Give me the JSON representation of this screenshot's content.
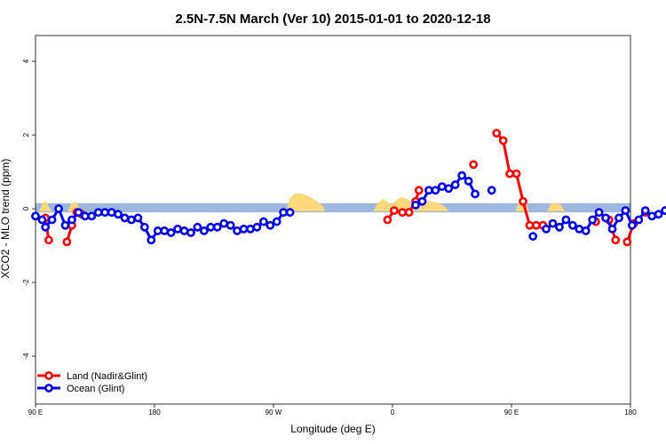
{
  "chart_data": {
    "type": "line",
    "title": "2.5N-7.5N March (Ver 10)   2015-01-01 to 2020-12-18",
    "xlabel": "Longitude (deg E)",
    "ylabel": "XCO2 - MLO trend (ppm)",
    "xlim": [
      90,
      450
    ],
    "ylim": [
      -5.3,
      4.7
    ],
    "x_ticks": [
      {
        "value": 90,
        "label": "90 E"
      },
      {
        "value": 180,
        "label": "180"
      },
      {
        "value": 270,
        "label": "90 W"
      },
      {
        "value": 360,
        "label": "0"
      },
      {
        "value": 450,
        "label": "90 E"
      },
      {
        "value": 540,
        "label": "180"
      }
    ],
    "y_ticks": [
      {
        "value": -4,
        "label": "-4"
      },
      {
        "value": -2,
        "label": "-2"
      },
      {
        "value": 0,
        "label": "0"
      },
      {
        "value": 2,
        "label": "2"
      },
      {
        "value": 4,
        "label": "4"
      }
    ],
    "background": {
      "ocean_band_color": "#9db7de",
      "land_color": "#fdd87c",
      "band_ymin": -0.1,
      "band_ymax": 0.15
    },
    "legend": {
      "placement": "bottom-left",
      "entries": [
        {
          "label": "Land (Nadir&Glint)",
          "color": "#ff0000"
        },
        {
          "label": "Ocean (Glint)",
          "color": "#0000ee"
        }
      ]
    },
    "series": [
      {
        "name": "Land (Nadir&Glint)",
        "color": "#ff0000",
        "segments": [
          [
            [
              96,
              -0.25
            ],
            [
              98,
              -0.85
            ]
          ],
          [
            [
              109,
              -0.9
            ],
            [
              112,
              -0.45
            ]
          ],
          [
            [
              115,
              -0.1
            ],
            [
              118,
              -0.15
            ]
          ],
          [
            [
              303,
              -0.3
            ],
            [
              307,
              -0.05
            ],
            [
              312,
              -0.1
            ],
            [
              316,
              -0.1
            ],
            [
              320,
              0.2
            ],
            [
              322,
              0.5
            ]
          ],
          [
            [
              355,
              1.2
            ]
          ],
          [
            [
              369,
              2.05
            ],
            [
              373,
              1.85
            ],
            [
              377,
              0.95
            ],
            [
              381,
              0.95
            ],
            [
              385,
              0.2
            ],
            [
              389,
              -0.45
            ],
            [
              393,
              -0.45
            ],
            [
              397,
              -0.45
            ]
          ],
          [
            [
              429,
              -0.35
            ]
          ],
          [
            [
              437,
              -0.3
            ],
            [
              441,
              -0.85
            ]
          ],
          [
            [
              448,
              -0.9
            ],
            [
              452,
              -0.4
            ]
          ],
          [
            [
              459,
              -0.1
            ]
          ]
        ]
      },
      {
        "name": "Ocean (Glint)",
        "color": "#0000ee",
        "segments": [
          [
            [
              90,
              -0.2
            ],
            [
              94,
              -0.3
            ],
            [
              96,
              -0.5
            ],
            [
              100,
              -0.3
            ],
            [
              104,
              0.0
            ],
            [
              108,
              -0.45
            ],
            [
              112,
              -0.3
            ],
            [
              116,
              -0.1
            ],
            [
              120,
              -0.2
            ],
            [
              124,
              -0.2
            ],
            [
              128,
              -0.1
            ],
            [
              132,
              -0.1
            ],
            [
              136,
              -0.1
            ],
            [
              140,
              -0.15
            ],
            [
              144,
              -0.25
            ],
            [
              148,
              -0.3
            ],
            [
              152,
              -0.25
            ],
            [
              156,
              -0.5
            ],
            [
              160,
              -0.85
            ],
            [
              164,
              -0.6
            ],
            [
              168,
              -0.6
            ],
            [
              172,
              -0.65
            ],
            [
              176,
              -0.55
            ],
            [
              180,
              -0.6
            ],
            [
              184,
              -0.65
            ],
            [
              188,
              -0.5
            ],
            [
              192,
              -0.6
            ],
            [
              196,
              -0.5
            ],
            [
              200,
              -0.5
            ],
            [
              204,
              -0.4
            ],
            [
              208,
              -0.45
            ],
            [
              212,
              -0.6
            ],
            [
              216,
              -0.55
            ],
            [
              220,
              -0.55
            ],
            [
              224,
              -0.5
            ],
            [
              228,
              -0.35
            ],
            [
              232,
              -0.45
            ],
            [
              236,
              -0.35
            ],
            [
              240,
              -0.1
            ],
            [
              244,
              -0.1
            ]
          ],
          [
            [
              320,
              0.1
            ],
            [
              324,
              0.2
            ],
            [
              328,
              0.5
            ],
            [
              332,
              0.5
            ],
            [
              336,
              0.6
            ],
            [
              340,
              0.55
            ],
            [
              344,
              0.65
            ],
            [
              348,
              0.9
            ],
            [
              352,
              0.75
            ],
            [
              356,
              0.4
            ]
          ],
          [
            [
              366,
              0.5
            ]
          ],
          [
            [
              391,
              -0.75
            ]
          ],
          [
            [
              399,
              -0.55
            ],
            [
              403,
              -0.4
            ],
            [
              407,
              -0.5
            ],
            [
              411,
              -0.3
            ],
            [
              415,
              -0.45
            ],
            [
              419,
              -0.55
            ],
            [
              423,
              -0.6
            ],
            [
              427,
              -0.3
            ],
            [
              431,
              -0.1
            ],
            [
              435,
              -0.25
            ],
            [
              439,
              -0.55
            ],
            [
              443,
              -0.25
            ],
            [
              447,
              -0.05
            ],
            [
              451,
              -0.45
            ],
            [
              455,
              -0.3
            ],
            [
              459,
              -0.05
            ],
            [
              463,
              -0.2
            ],
            [
              467,
              -0.15
            ],
            [
              471,
              -0.05
            ],
            [
              475,
              -0.1
            ],
            [
              479,
              -0.15
            ],
            [
              483,
              -0.25
            ],
            [
              487,
              -0.3
            ],
            [
              491,
              -0.25
            ],
            [
              495,
              -0.5
            ],
            [
              499,
              -0.8
            ]
          ]
        ]
      }
    ]
  }
}
